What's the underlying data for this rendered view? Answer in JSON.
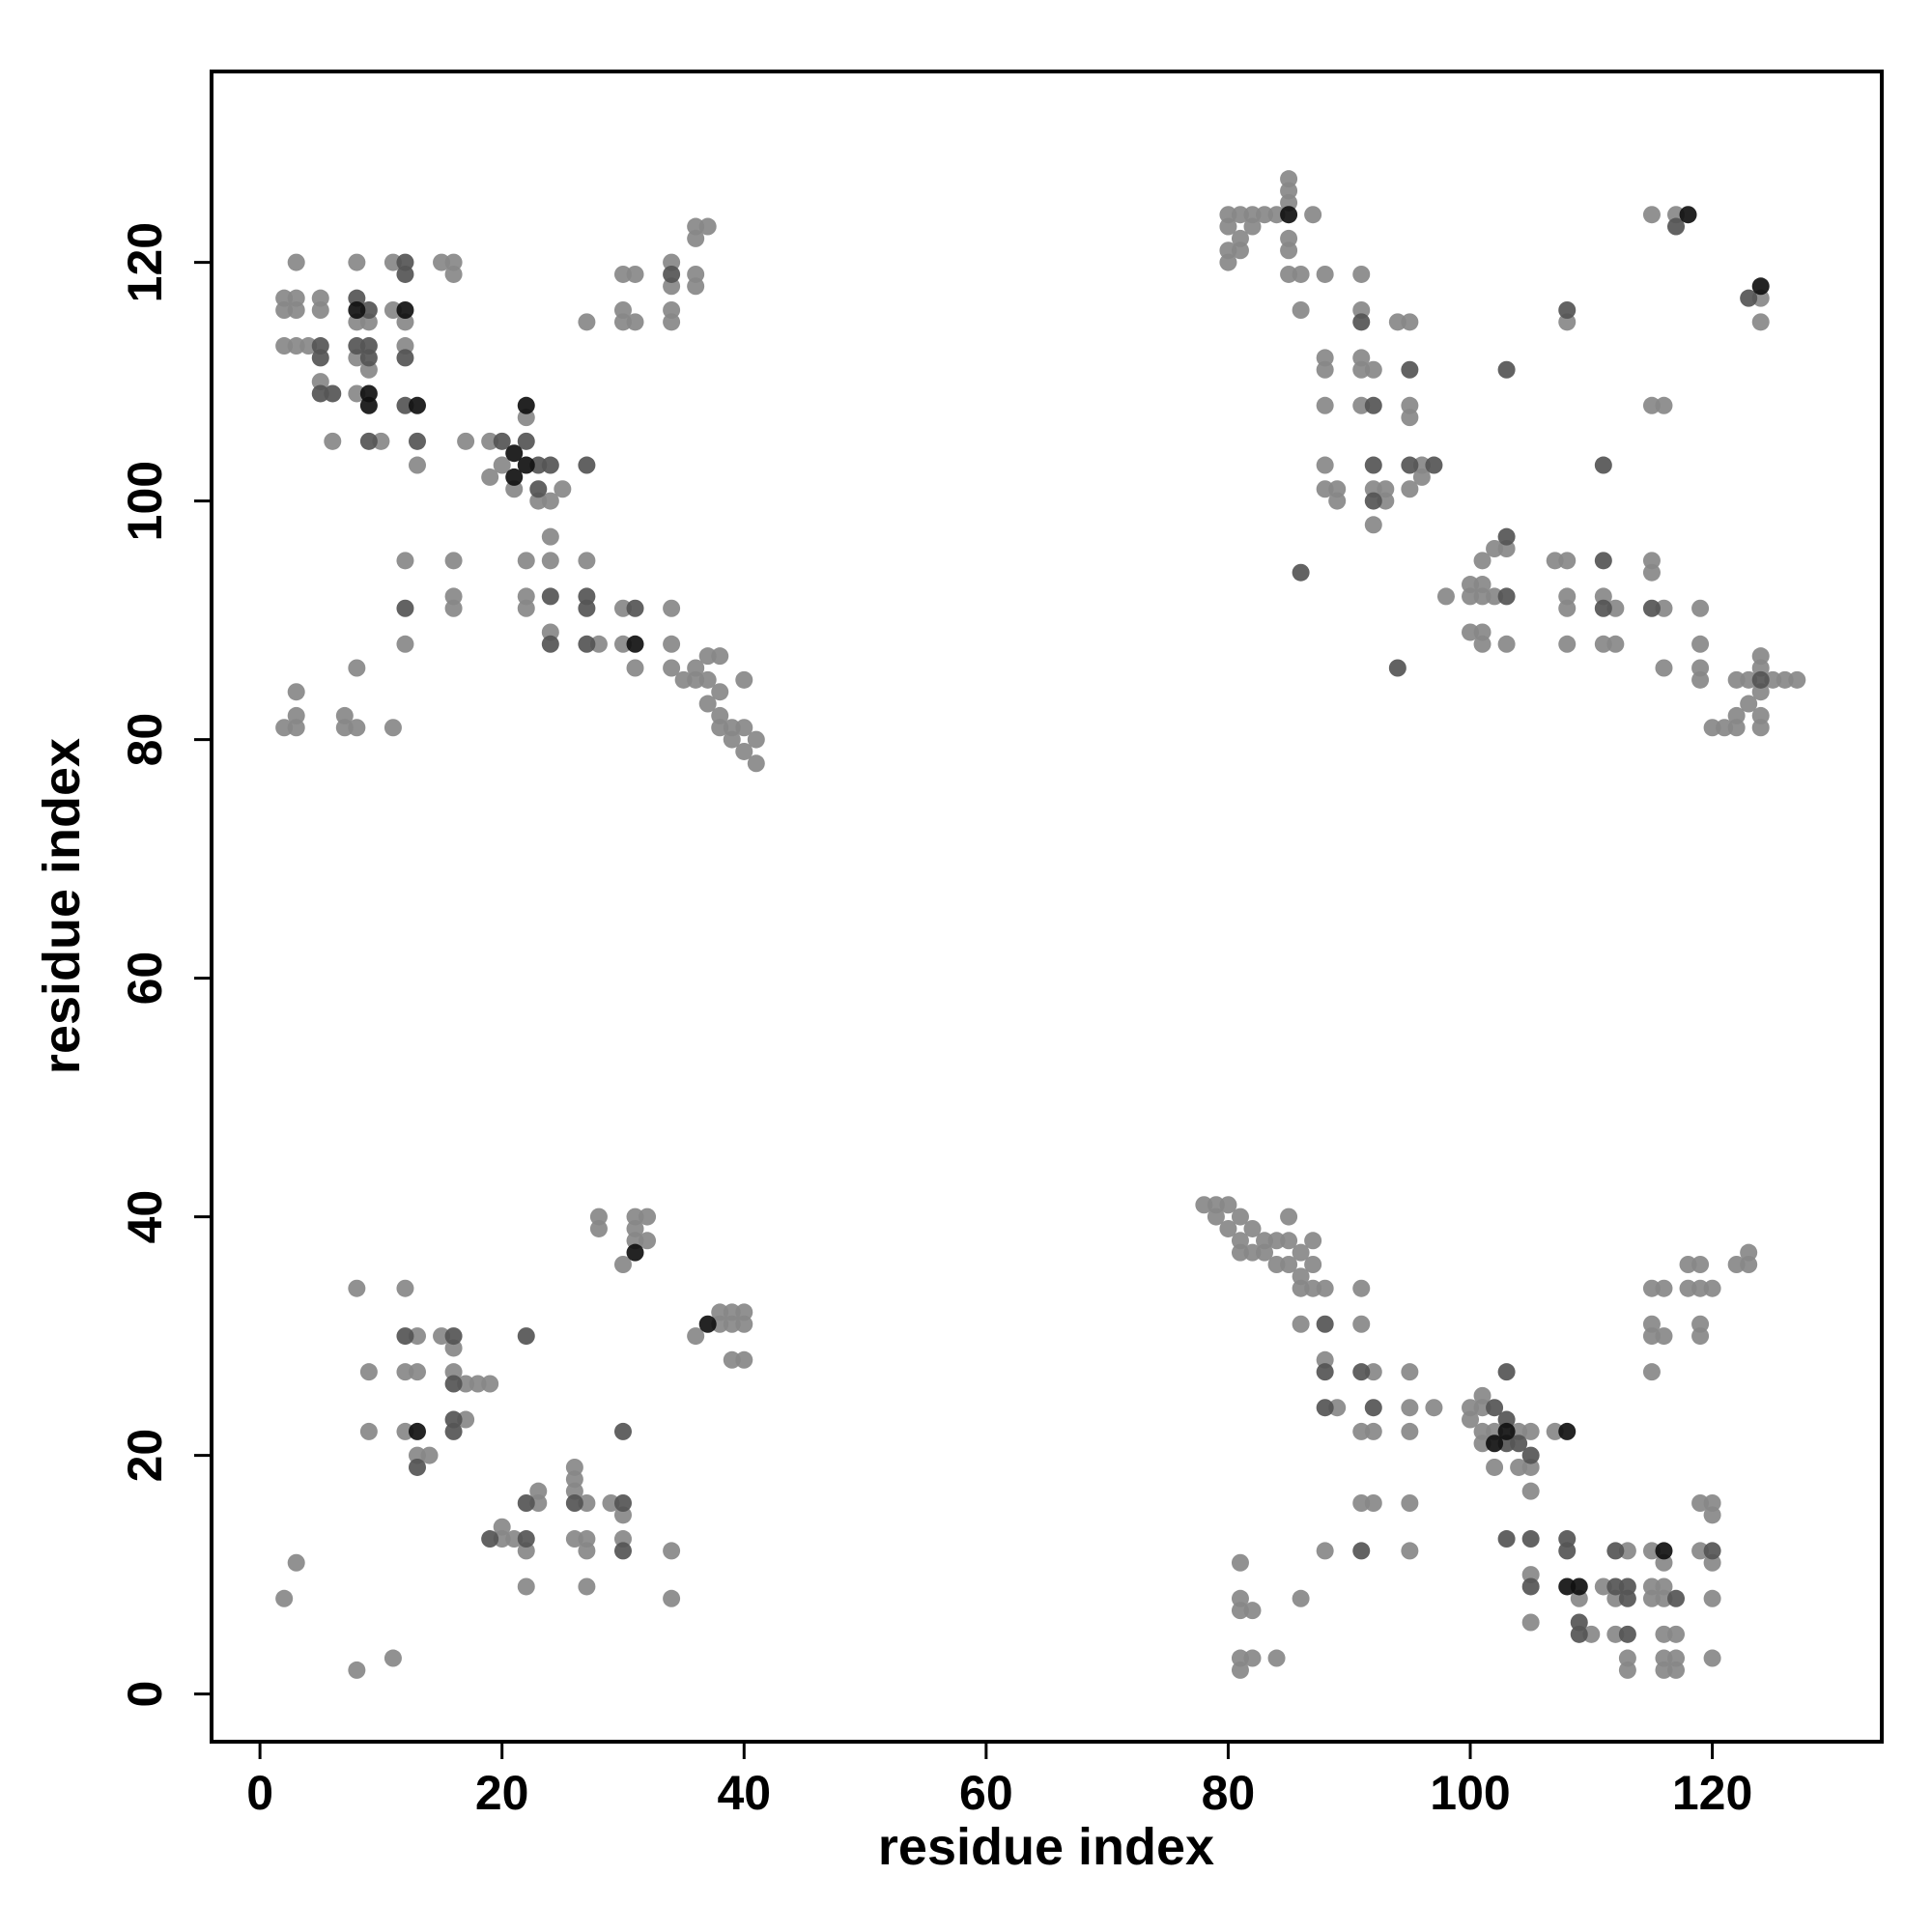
{
  "chart_data": {
    "type": "scatter",
    "xlabel": "residue index",
    "ylabel": "residue index",
    "xlim": [
      -4,
      134
    ],
    "ylim": [
      -4,
      136
    ],
    "xticks": [
      0,
      20,
      40,
      60,
      80,
      100,
      120
    ],
    "yticks": [
      0,
      20,
      40,
      60,
      80,
      100,
      120
    ],
    "series": [
      {
        "color": "#888888",
        "x": [
          2,
          3,
          2,
          3,
          2,
          3,
          4,
          3,
          5,
          5,
          5,
          6,
          8,
          8,
          9,
          8,
          9,
          8,
          10,
          11,
          11,
          12,
          12,
          13,
          15,
          16,
          16,
          17,
          19,
          19,
          20,
          21,
          22,
          23,
          24,
          25,
          12,
          12,
          16,
          16,
          16,
          22,
          22,
          22,
          24,
          24,
          24,
          27,
          28,
          30,
          30,
          31,
          34,
          34,
          34,
          35,
          36,
          36,
          37,
          37,
          38,
          37,
          38,
          38,
          39,
          39,
          40,
          40,
          41,
          41,
          40,
          38,
          2,
          3,
          3,
          3,
          7,
          7,
          8,
          8,
          11,
          27,
          30,
          31,
          30,
          30,
          31,
          34,
          34,
          34,
          34,
          36,
          37,
          36,
          36,
          36,
          80,
          81,
          82,
          83,
          80,
          81,
          80,
          81,
          80,
          82,
          84,
          85,
          85,
          85,
          85,
          85,
          85,
          86,
          87,
          86,
          88,
          88,
          88,
          88,
          88,
          88,
          89,
          89,
          91,
          91,
          91,
          91,
          92,
          91,
          92,
          93,
          93,
          92,
          94,
          95,
          95,
          95,
          96,
          95,
          96,
          98,
          100,
          101,
          100,
          101,
          102,
          101,
          102,
          103,
          100,
          101,
          101,
          103,
          107,
          108,
          108,
          108,
          108,
          108,
          111,
          112,
          111,
          112,
          115,
          115,
          116,
          116,
          115,
          116,
          119,
          119,
          119,
          119,
          120,
          121,
          122,
          122,
          123,
          123,
          124,
          124,
          124,
          124,
          124,
          125,
          126,
          127,
          122,
          115,
          117,
          124,
          124,
          2,
          3,
          8,
          11,
          8,
          12,
          9,
          9,
          12,
          13,
          13,
          12,
          13,
          14,
          15,
          16,
          16,
          17,
          17,
          18,
          19,
          20,
          20,
          21,
          22,
          23,
          23,
          22,
          26,
          26,
          26,
          27,
          27,
          26,
          27,
          27,
          28,
          28,
          29,
          30,
          30,
          30,
          31,
          32,
          31,
          31,
          32,
          34,
          34,
          36,
          38,
          38,
          39,
          40,
          39,
          40,
          39,
          40,
          78,
          79,
          80,
          79,
          80,
          81,
          81,
          82,
          81,
          82,
          83,
          84,
          83,
          84,
          85,
          85,
          86,
          85,
          86,
          87,
          87,
          86,
          87,
          88,
          86,
          88,
          89,
          91,
          91,
          92,
          91,
          92,
          95,
          95,
          95,
          97,
          100,
          100,
          101,
          101,
          101,
          101,
          102,
          102,
          104,
          104,
          105,
          105,
          107,
          81,
          81,
          81,
          82,
          81,
          81,
          82,
          84,
          86,
          88,
          91,
          92,
          95,
          95,
          105,
          105,
          105,
          109,
          110,
          111,
          113,
          112,
          112,
          113,
          113,
          115,
          115,
          116,
          115,
          116,
          116,
          116,
          117,
          116,
          117,
          116,
          117,
          119,
          120,
          120,
          119,
          120,
          120,
          120,
          115,
          115,
          115,
          116,
          115,
          116,
          118,
          118,
          119,
          119,
          120,
          119,
          119,
          122,
          123,
          123
        ],
        "values": [
          117,
          117,
          116,
          116,
          113,
          113,
          113,
          120,
          117,
          116,
          110,
          105,
          120,
          115,
          115,
          112,
          111,
          109,
          105,
          120,
          116,
          115,
          113,
          103,
          120,
          120,
          119,
          105,
          105,
          102,
          103,
          101,
          107,
          100,
          100,
          101,
          95,
          88,
          95,
          92,
          91,
          95,
          92,
          91,
          97,
          95,
          89,
          95,
          88,
          91,
          88,
          86,
          91,
          88,
          86,
          85,
          86,
          85,
          87,
          85,
          87,
          83,
          82,
          81,
          80,
          81,
          81,
          79,
          80,
          78,
          85,
          84,
          81,
          81,
          82,
          84,
          82,
          81,
          81,
          86,
          81,
          115,
          119,
          119,
          116,
          115,
          115,
          120,
          118,
          116,
          115,
          123,
          123,
          122,
          119,
          118,
          124,
          124,
          124,
          124,
          123,
          122,
          121,
          121,
          120,
          123,
          124,
          127,
          126,
          125,
          122,
          121,
          119,
          119,
          124,
          116,
          119,
          112,
          111,
          108,
          103,
          101,
          101,
          100,
          119,
          116,
          112,
          111,
          111,
          108,
          101,
          101,
          100,
          98,
          115,
          115,
          108,
          107,
          103,
          101,
          102,
          92,
          93,
          93,
          92,
          92,
          92,
          95,
          96,
          96,
          89,
          89,
          88,
          88,
          95,
          95,
          92,
          91,
          88,
          115,
          92,
          91,
          88,
          88,
          95,
          94,
          91,
          86,
          108,
          108,
          91,
          88,
          86,
          85,
          81,
          81,
          82,
          81,
          85,
          83,
          87,
          86,
          84,
          82,
          81,
          85,
          85,
          85,
          85,
          124,
          124,
          117,
          115,
          8,
          11,
          2,
          3,
          34,
          34,
          27,
          22,
          27,
          27,
          30,
          22,
          20,
          20,
          30,
          29,
          27,
          26,
          23,
          26,
          26,
          14,
          13,
          13,
          12,
          17,
          16,
          9,
          19,
          18,
          17,
          16,
          13,
          13,
          12,
          9,
          40,
          39,
          16,
          15,
          13,
          36,
          40,
          40,
          39,
          38,
          38,
          12,
          8,
          30,
          31,
          32,
          32,
          32,
          31,
          31,
          28,
          28,
          41,
          41,
          41,
          40,
          39,
          40,
          38,
          39,
          37,
          37,
          38,
          38,
          37,
          36,
          38,
          40,
          37,
          36,
          35,
          38,
          36,
          34,
          34,
          34,
          31,
          28,
          24,
          34,
          31,
          27,
          22,
          22,
          27,
          24,
          22,
          24,
          24,
          23,
          25,
          24,
          22,
          21,
          22,
          19,
          22,
          19,
          22,
          19,
          22,
          11,
          8,
          7,
          7,
          3,
          2,
          3,
          3,
          8,
          12,
          16,
          16,
          16,
          12,
          10,
          6,
          17,
          8,
          5,
          9,
          12,
          8,
          5,
          3,
          2,
          12,
          9,
          9,
          8,
          8,
          11,
          5,
          5,
          3,
          3,
          2,
          2,
          16,
          16,
          15,
          12,
          11,
          8,
          3,
          27,
          31,
          30,
          30,
          34,
          34,
          34,
          36,
          36,
          34,
          34,
          31,
          30,
          36,
          37,
          36
        ]
      },
      {
        "color": "#555555",
        "x": [
          5,
          5,
          5,
          6,
          8,
          9,
          8,
          9,
          9,
          9,
          12,
          12,
          12,
          12,
          13,
          20,
          22,
          23,
          23,
          24,
          27,
          12,
          24,
          24,
          27,
          27,
          27,
          31,
          34,
          92,
          95,
          97,
          86,
          94,
          103,
          103,
          103,
          111,
          111,
          115,
          124,
          123,
          117,
          91,
          92,
          92,
          95,
          111,
          108,
          12,
          16,
          16,
          16,
          22,
          19,
          22,
          22,
          26,
          30,
          30,
          30,
          13,
          16,
          88,
          88,
          88,
          91,
          92,
          102,
          103,
          103,
          104,
          105,
          103,
          91,
          103,
          105,
          105,
          108,
          108,
          109,
          109,
          112,
          112,
          113,
          113,
          113,
          117,
          120
        ],
        "values": [
          113,
          112,
          109,
          109,
          117,
          116,
          113,
          113,
          112,
          105,
          120,
          119,
          112,
          108,
          105,
          105,
          105,
          103,
          101,
          103,
          103,
          91,
          92,
          88,
          92,
          91,
          88,
          91,
          119,
          103,
          111,
          103,
          94,
          86,
          92,
          97,
          111,
          95,
          103,
          91,
          85,
          117,
          123,
          115,
          108,
          100,
          103,
          91,
          116,
          30,
          30,
          26,
          22,
          30,
          13,
          13,
          16,
          16,
          16,
          12,
          22,
          19,
          23,
          31,
          27,
          24,
          27,
          24,
          24,
          23,
          21,
          21,
          20,
          27,
          12,
          13,
          13,
          9,
          13,
          12,
          6,
          5,
          12,
          9,
          9,
          8,
          5,
          8,
          12
        ]
      },
      {
        "color": "#111111",
        "x": [
          8,
          9,
          9,
          12,
          13,
          21,
          21,
          22,
          22,
          31,
          85,
          118,
          124,
          13,
          31,
          37,
          102,
          103,
          108,
          108,
          109,
          116
        ],
        "values": [
          116,
          109,
          108,
          116,
          108,
          104,
          102,
          103,
          108,
          88,
          124,
          124,
          118,
          22,
          37,
          31,
          21,
          22,
          22,
          9,
          9,
          12
        ]
      }
    ]
  }
}
